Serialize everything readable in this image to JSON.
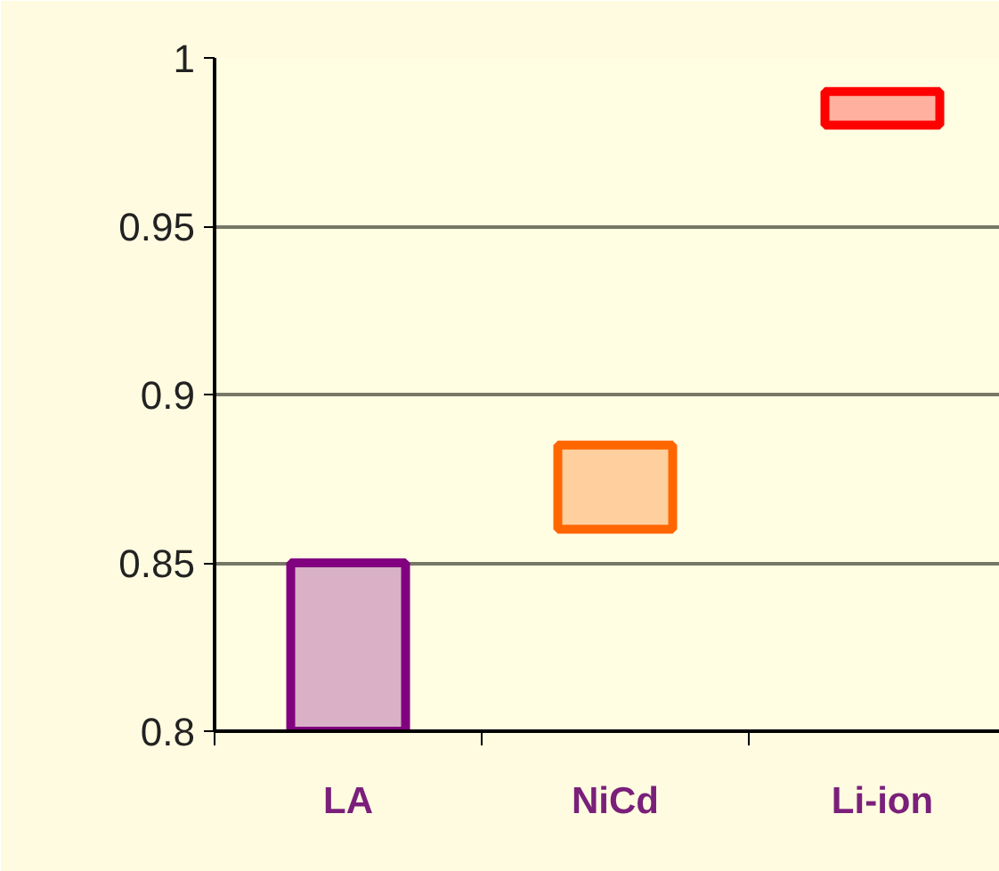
{
  "chart_data": {
    "type": "bar",
    "categories": [
      "LA",
      "NiCd",
      "Li-ion"
    ],
    "base": [
      0.8,
      0.86,
      0.98
    ],
    "values": [
      0.05,
      0.025,
      0.01
    ],
    "colors": [
      "#800080",
      "#ff6600",
      "#ff0000"
    ],
    "ylim": [
      0.8,
      1
    ],
    "yticks": [
      0.8,
      0.85,
      0.9,
      0.95,
      1
    ],
    "grid": "y"
  }
}
